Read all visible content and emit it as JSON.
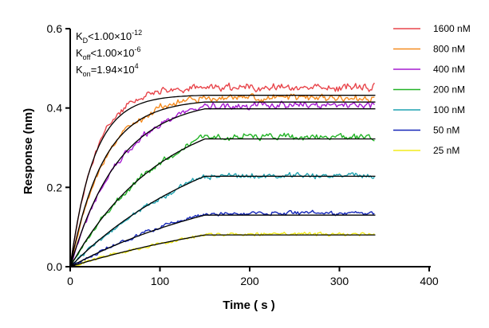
{
  "chart_data": {
    "type": "line",
    "title": "",
    "xlabel": "Time ( s )",
    "ylabel": "Response (nm)",
    "xlim": [
      0,
      400
    ],
    "ylim": [
      0,
      0.6
    ],
    "x_ticks": [
      0,
      100,
      200,
      300,
      400
    ],
    "y_ticks": [
      0.0,
      0.2,
      0.4,
      0.6
    ],
    "x_tick_labels": [
      "0",
      "100",
      "200",
      "300",
      "400"
    ],
    "y_tick_labels": [
      "0.0",
      "0.2",
      "0.4",
      "0.6"
    ],
    "grid": false,
    "legend_position": "top-right",
    "association_end_s": 150,
    "end_s": 340,
    "annotations": {
      "kd": {
        "prefix": "K",
        "sub": "D",
        "rel": "<",
        "mant": "1.00×10",
        "exp": "-12"
      },
      "koff": {
        "prefix": "K",
        "sub": "off",
        "rel": "<",
        "mant": "1.00×10",
        "exp": "-6"
      },
      "kon": {
        "prefix": "K",
        "sub": "on",
        "rel": "=",
        "mant": "1.94×10",
        "exp": "4"
      }
    },
    "fit_color": "#000000",
    "series": [
      {
        "name": "1600 nM",
        "color": "#e8454b",
        "plateau": 0.452,
        "fit_plateau": 0.432,
        "rate": 0.035
      },
      {
        "name": "800 nM",
        "color": "#f58b1f",
        "plateau": 0.425,
        "fit_plateau": 0.415,
        "rate": 0.025
      },
      {
        "name": "400 nM",
        "color": "#a61bd1",
        "plateau": 0.405,
        "fit_plateau": 0.398,
        "rate": 0.017
      },
      {
        "name": "200 nM",
        "color": "#22b326",
        "plateau": 0.327,
        "fit_plateau": 0.322,
        "rate": 0.009
      },
      {
        "name": "100 nM",
        "color": "#1fa2b0",
        "plateau": 0.229,
        "fit_plateau": 0.228,
        "rate": 0.0055
      },
      {
        "name": "50 nM",
        "color": "#1527b8",
        "plateau": 0.135,
        "fit_plateau": 0.13,
        "rate": 0.0045
      },
      {
        "name": "25 nM",
        "color": "#f2ec1c",
        "plateau": 0.082,
        "fit_plateau": 0.08,
        "rate": 0.0035
      }
    ]
  }
}
